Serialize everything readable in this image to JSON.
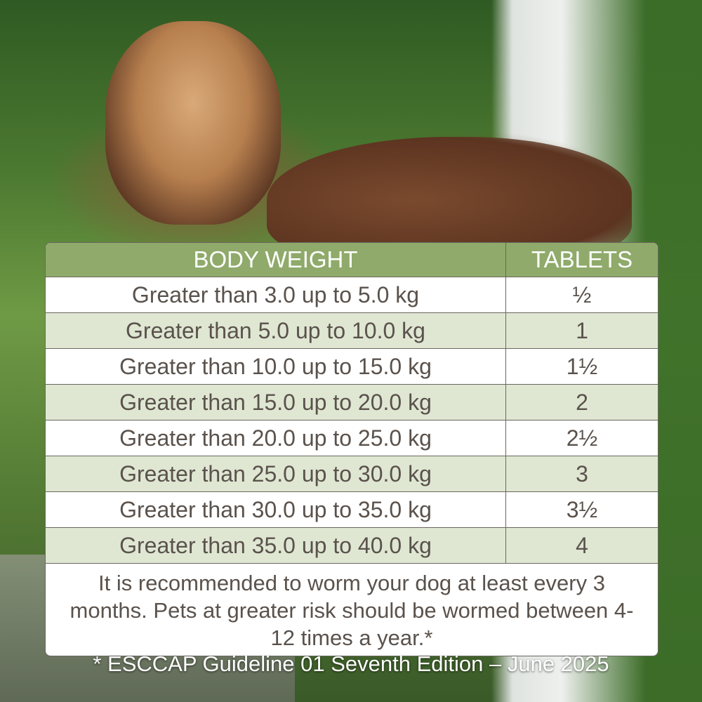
{
  "table": {
    "headers": [
      "BODY WEIGHT",
      "TABLETS"
    ],
    "rows": [
      {
        "weight": "Greater than 3.0 up to 5.0 kg",
        "tablets": "½"
      },
      {
        "weight": "Greater than 5.0 up to 10.0 kg",
        "tablets": "1"
      },
      {
        "weight": "Greater than 10.0 up to 15.0 kg",
        "tablets": "1½"
      },
      {
        "weight": "Greater than 15.0 up to 20.0 kg",
        "tablets": "2"
      },
      {
        "weight": "Greater than 20.0 up to 25.0 kg",
        "tablets": "2½"
      },
      {
        "weight": "Greater than 25.0 up to 30.0 kg",
        "tablets": "3"
      },
      {
        "weight": "Greater than 30.0 up to 35.0 kg",
        "tablets": "3½"
      },
      {
        "weight": "Greater than 35.0 up to 40.0 kg",
        "tablets": "4"
      }
    ],
    "note": "It is recommended to worm your dog at least every 3 months. Pets at greater risk should be wormed between 4-12 times a year.*"
  },
  "footnote": "* ESCCAP Guideline 01 Seventh Edition – June 2025",
  "colors": {
    "header": "#8faa6a",
    "alt_row": "#dfe7d2",
    "text": "#5a524c"
  }
}
